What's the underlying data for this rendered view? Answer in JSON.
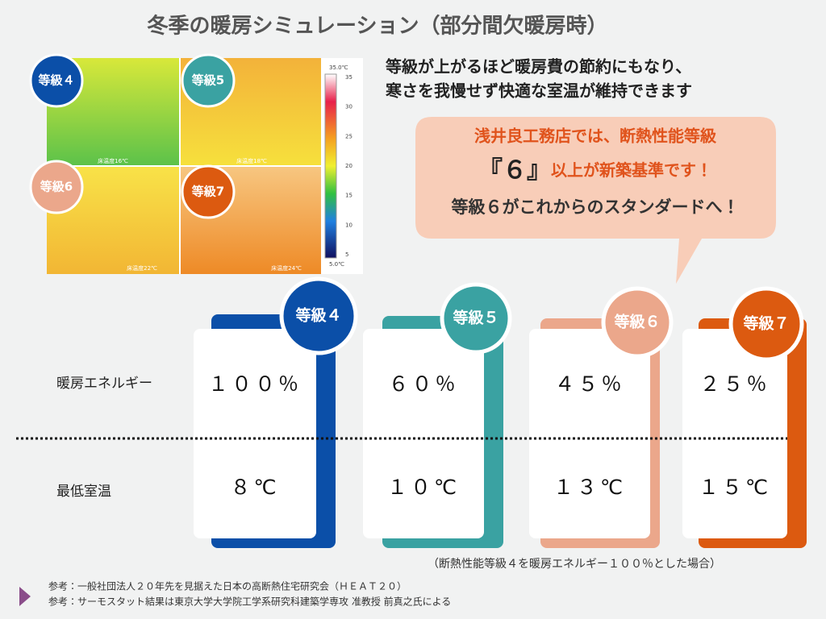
{
  "title": "冬季の暖房シミュレーション（部分間欠暖房時）",
  "thermal": {
    "badges": [
      "等級４",
      "等級5",
      "等級6",
      "等級7"
    ],
    "floor_temps": [
      "床温度16℃",
      "床温度18℃",
      "床温度22℃",
      "床温度24℃"
    ],
    "scale_max": "35.0℃",
    "scale_min": "5.0℃",
    "scale_ticks": [
      "35",
      "30",
      "25",
      "20",
      "15",
      "10",
      "5"
    ]
  },
  "lead": [
    "等級が上がるほど暖房費の節約にもなり、",
    "寒さを我慢せず快適な室温が維持できます"
  ],
  "callout": {
    "line1": "浅井良工務店では、断熱性能等級",
    "line2_em": "『６』",
    "line2_rest": "以上が新築基準です！",
    "line3": "等級６がこれからのスタンダードへ！"
  },
  "rows": [
    "暖房エネルギー",
    "最低室温"
  ],
  "grades": [
    {
      "label": "等級４",
      "energy": "１００％",
      "temp": "８℃",
      "color": "#0b4fa8"
    },
    {
      "label": "等級５",
      "energy": "６０％",
      "temp": "１０℃",
      "color": "#3aa2a2"
    },
    {
      "label": "等級６",
      "energy": "４５％",
      "temp": "１３℃",
      "color": "#eba78b"
    },
    {
      "label": "等級７",
      "energy": "２５％",
      "temp": "１５℃",
      "color": "#dc5a10"
    }
  ],
  "footnote": "（断熱性能等級４を暖房エネルギー１００％とした場合）",
  "references": [
    "参考：一般社団法人２０年先を見据えた日本の高断熱住宅研究会（ＨＥＡＴ２０）",
    "参考：サーモスタット結果は東京大学大学院工学系研究科建築学専攻 准教授 前真之氏による"
  ]
}
